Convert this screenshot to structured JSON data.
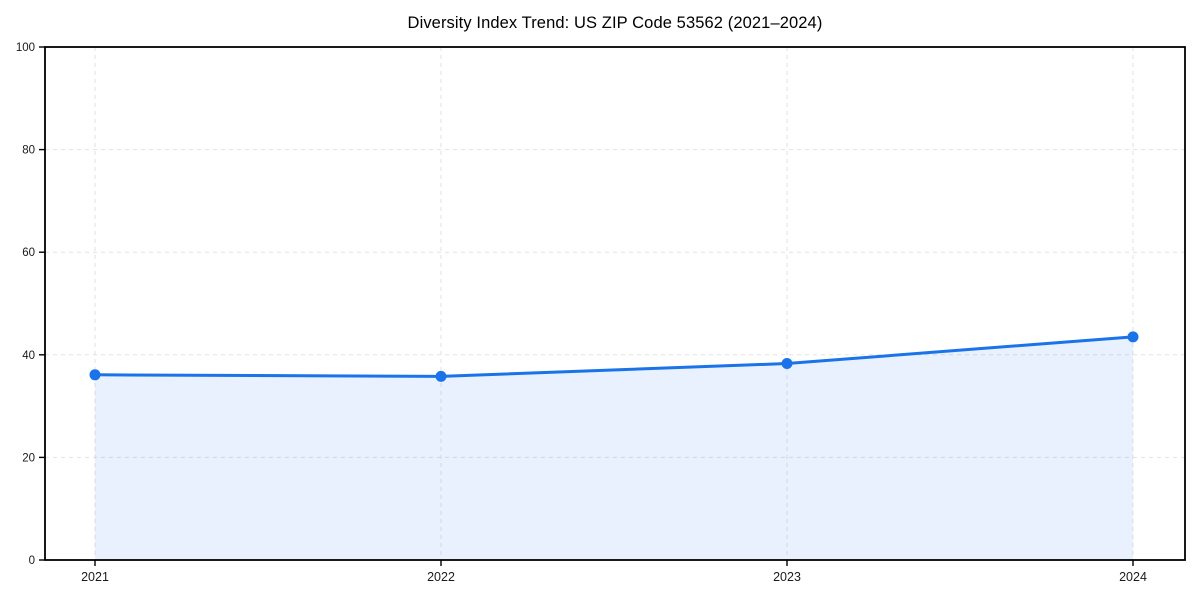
{
  "page": {
    "background_color": "#ffffff"
  },
  "chart_data": {
    "type": "area",
    "title": "Diversity Index Trend: US ZIP Code 53562 (2021–2024)",
    "categories": [
      "2021",
      "2022",
      "2023",
      "2024"
    ],
    "values": [
      36.1,
      35.8,
      38.3,
      43.5
    ],
    "series_name": "Diversity Index",
    "xlabel": "",
    "ylabel": "",
    "ylim": [
      0,
      100
    ],
    "yticks": [
      0,
      20,
      40,
      60,
      80,
      100
    ],
    "grid": "dashed-both-axes",
    "legend": "none",
    "marker": "circle",
    "colors": {
      "line": "#1a73e8",
      "fill": "rgba(26,115,232,0.10)",
      "grid": "#e2e2e2",
      "axis": "#000000",
      "tick_label": "#1a1a1a",
      "title": "#000000"
    }
  }
}
